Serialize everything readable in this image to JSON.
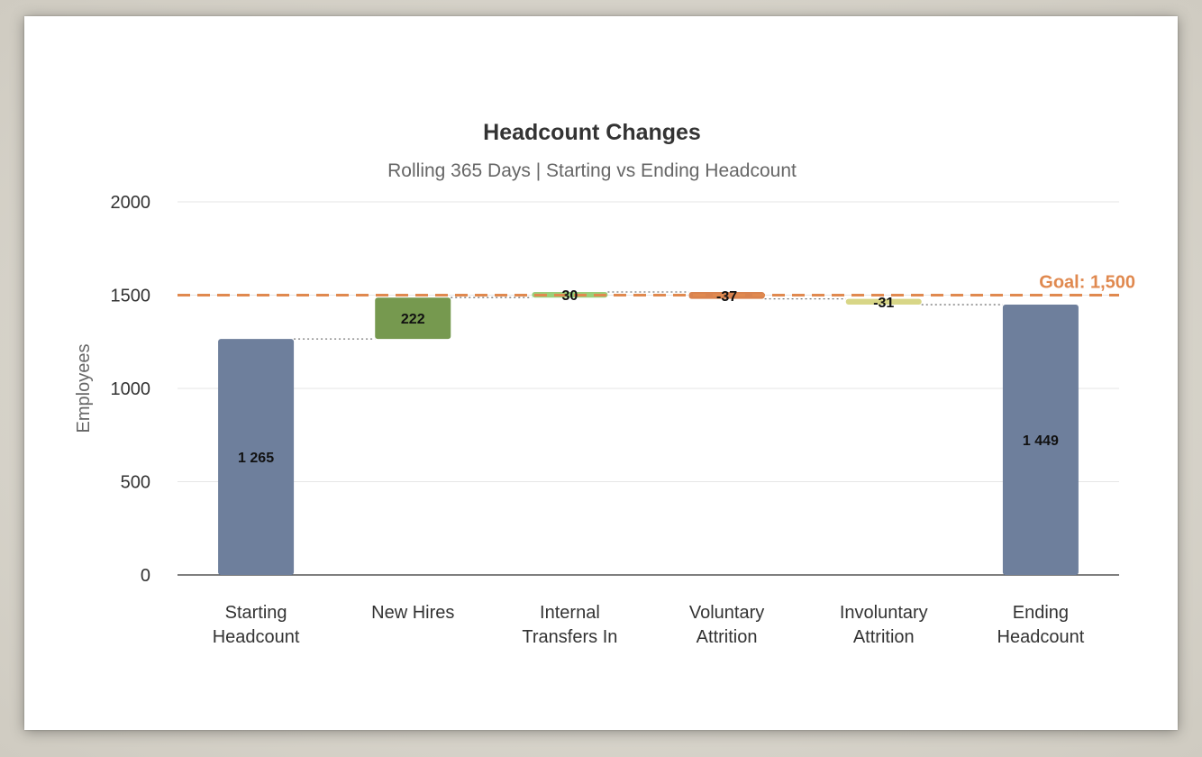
{
  "chart_data": {
    "type": "bar",
    "variant": "waterfall",
    "title": "Headcount Changes",
    "subtitle": "Rolling 365 Days | Starting vs Ending Headcount",
    "ylabel": "Employees",
    "xlabel": "",
    "ylim": [
      0,
      2000
    ],
    "yticks": [
      "0",
      "500",
      "1000",
      "1500",
      "2000"
    ],
    "grid": true,
    "categories": [
      [
        "Starting",
        "Headcount"
      ],
      [
        "New Hires"
      ],
      [
        "Internal",
        "Transfers In"
      ],
      [
        "Voluntary",
        "Attrition"
      ],
      [
        "Involuntary",
        "Attrition"
      ],
      [
        "Ending",
        "Headcount"
      ]
    ],
    "values": [
      1265,
      222,
      30,
      -37,
      -31,
      1449
    ],
    "kinds": [
      "total",
      "delta",
      "delta",
      "delta",
      "delta",
      "total"
    ],
    "data_labels": [
      "1 265",
      "222",
      "30",
      "-37",
      "-31",
      "1 449"
    ],
    "colors": [
      "#6e7f9c",
      "#76994f",
      "#9bcf7a",
      "#d9834f",
      "#d8d687",
      "#6e7f9c"
    ],
    "goal": {
      "value": 1500,
      "label": "Goal: 1,500",
      "color": "#e0894f"
    }
  }
}
